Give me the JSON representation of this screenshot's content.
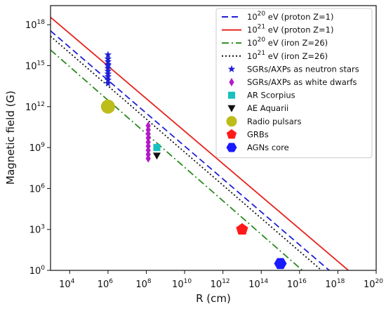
{
  "chart_data": {
    "type": "scatter",
    "title": "",
    "xlabel": "R (cm)",
    "ylabel": "Magnetic field (G)",
    "xscale": "log",
    "yscale": "log",
    "xlim_log10": [
      3,
      20
    ],
    "ylim_log10": [
      0,
      19.4
    ],
    "x_ticks": [
      {
        "base": "10",
        "exp": "4",
        "log10": 4
      },
      {
        "base": "10",
        "exp": "6",
        "log10": 6
      },
      {
        "base": "10",
        "exp": "8",
        "log10": 8
      },
      {
        "base": "10",
        "exp": "10",
        "log10": 10
      },
      {
        "base": "10",
        "exp": "12",
        "log10": 12
      },
      {
        "base": "10",
        "exp": "14",
        "log10": 14
      },
      {
        "base": "10",
        "exp": "16",
        "log10": 16
      },
      {
        "base": "10",
        "exp": "18",
        "log10": 18
      },
      {
        "base": "10",
        "exp": "20",
        "log10": 20
      }
    ],
    "y_ticks": [
      {
        "base": "10",
        "exp": "0",
        "log10": 0
      },
      {
        "base": "10",
        "exp": "3",
        "log10": 3
      },
      {
        "base": "10",
        "exp": "6",
        "log10": 6
      },
      {
        "base": "10",
        "exp": "9",
        "log10": 9
      },
      {
        "base": "10",
        "exp": "12",
        "log10": 12
      },
      {
        "base": "10",
        "exp": "15",
        "log10": 15
      },
      {
        "base": "10",
        "exp": "18",
        "log10": 18
      }
    ],
    "grid": false,
    "legend_position": "top-right",
    "lines": [
      {
        "label_base": "10",
        "label_exp": "20",
        "label_rest": " eV (proton Z=1)",
        "color": "#1f1fd6",
        "dash": "9,5",
        "log_x": [
          3,
          17.55
        ],
        "log_y": [
          17.55,
          0
        ]
      },
      {
        "label_base": "10",
        "label_exp": "21",
        "label_rest": " eV (proton Z=1)",
        "color": "#e8221c",
        "dash": "",
        "log_x": [
          3,
          18.55
        ],
        "log_y": [
          18.55,
          0
        ]
      },
      {
        "label_base": "10",
        "label_exp": "20",
        "label_rest": " eV (iron Z=26)",
        "color": "#2a8a1e",
        "dash": "10,4,2,4",
        "log_x": [
          3,
          16.15
        ],
        "log_y": [
          16.15,
          0
        ]
      },
      {
        "label_base": "10",
        "label_exp": "21",
        "label_rest": " eV (iron Z=26)",
        "color": "#111111",
        "dash": "2,3",
        "log_x": [
          3,
          17.15
        ],
        "log_y": [
          17.15,
          0
        ]
      }
    ],
    "markers": [
      {
        "label": "SGRs/AXPs as neutron stars",
        "shape": "star",
        "color": "#1f1fd6",
        "points": [
          [
            6,
            13.7
          ],
          [
            6,
            13.95
          ],
          [
            6,
            14.2
          ],
          [
            6,
            14.4
          ],
          [
            6,
            14.6
          ],
          [
            6,
            14.8
          ],
          [
            6,
            15.0
          ],
          [
            6,
            15.1
          ],
          [
            6,
            15.3
          ],
          [
            6,
            15.5
          ],
          [
            6,
            15.8
          ]
        ]
      },
      {
        "label": "SGRs/AXPs as white dwarfs",
        "shape": "diamond",
        "color": "#b419c9",
        "points": [
          [
            8.1,
            8.2
          ],
          [
            8.1,
            8.5
          ],
          [
            8.1,
            8.8
          ],
          [
            8.1,
            9.1
          ],
          [
            8.1,
            9.4
          ],
          [
            8.1,
            9.7
          ],
          [
            8.1,
            10.0
          ],
          [
            8.1,
            10.3
          ],
          [
            8.1,
            10.6
          ]
        ]
      },
      {
        "label": "AR Scorpius",
        "shape": "square",
        "color": "#17bfbf",
        "points": [
          [
            8.55,
            9.0
          ]
        ]
      },
      {
        "label": "AE Aquarii",
        "shape": "triangle-down",
        "color": "#111111",
        "points": [
          [
            8.55,
            8.4
          ]
        ]
      },
      {
        "label": "Radio pulsars",
        "shape": "circle",
        "color": "#bcbc1a",
        "points": [
          [
            6,
            12.0
          ]
        ]
      },
      {
        "label": "GRBs",
        "shape": "pentagon",
        "color": "#ff1a1a",
        "points": [
          [
            13,
            3.0
          ]
        ]
      },
      {
        "label": "AGNs core",
        "shape": "hexagon",
        "color": "#1a1aff",
        "points": [
          [
            15,
            0.5
          ]
        ]
      }
    ]
  }
}
